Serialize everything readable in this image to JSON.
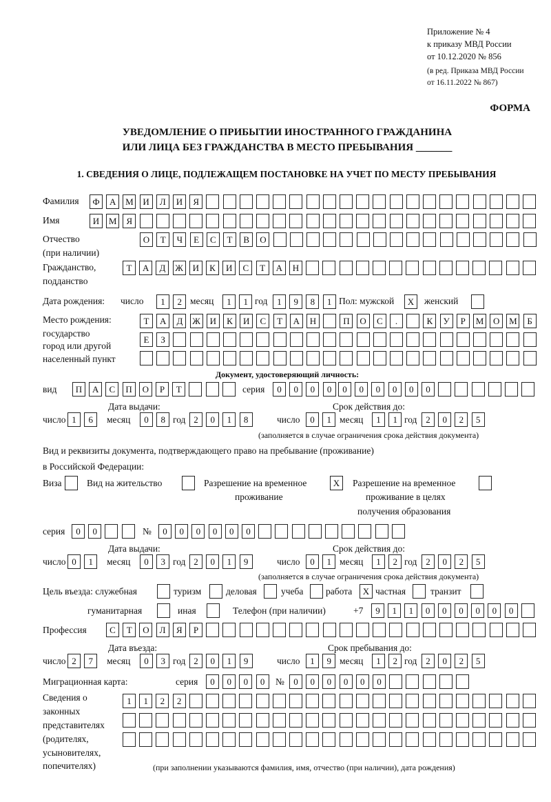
{
  "header": {
    "line1": "Приложение № 4",
    "line2": "к приказу МВД России",
    "line3": "от 10.12.2020 № 856",
    "line4": "(в ред. Приказа МВД России",
    "line5": "от 16.11.2022 № 867)",
    "forma": "ФОРМА",
    "title1": "УВЕДОМЛЕНИЕ О ПРИБЫТИИ ИНОСТРАННОГО ГРАЖДАНИНА",
    "title2": "ИЛИ ЛИЦА БЕЗ ГРАЖДАНСТВА В МЕСТО ПРЕБЫВАНИЯ _______",
    "section1": "1. СВЕДЕНИЯ О ЛИЦЕ, ПОДЛЕЖАЩЕМ ПОСТАНОВКЕ НА УЧЕТ ПО МЕСТУ ПРЕБЫВАНИЯ"
  },
  "labels": {
    "surname": "Фамилия",
    "name": "Имя",
    "patronymic": "Отчество",
    "patronymic_note": "(при наличии)",
    "citizenship1": "Гражданство,",
    "citizenship2": "подданство",
    "dob": "Дата рождения:",
    "day": "число",
    "month": "месяц",
    "year": "год",
    "sex_male": "Пол: мужской",
    "sex_female": "женский",
    "birthplace1": "Место рождения:",
    "birthplace2": "государство",
    "birthplace3": "город или другой",
    "birthplace4": "населенный пункт",
    "id_doc": "Документ, удостоверяющий личность:",
    "kind": "вид",
    "series": "серия",
    "number": "№",
    "issue_date": "Дата выдачи:",
    "valid_until": "Срок действия до:",
    "validity_note": "(заполняется в случае ограничения срока действия документа)",
    "stay_doc1": "Вид и реквизиты документа, подтверждающего право на пребывание (проживание)",
    "stay_doc2": "в Российской Федерации:",
    "visa": "Виза",
    "residence_permit": "Вид на жительство",
    "trp1": "Разрешение на временное",
    "trp2": "проживание",
    "trp_edu1": "Разрешение на временное",
    "trp_edu2": "проживание в целях",
    "trp_edu3": "получения образования",
    "purpose": "Цель въезда: служебная",
    "tourism": "туризм",
    "business": "деловая",
    "study": "учеба",
    "work": "работа",
    "private": "частная",
    "transit": "транзит",
    "humanitarian": "гуманитарная",
    "other": "иная",
    "phone": "Телефон (при наличии)",
    "phone_prefix": "+7",
    "profession": "Профессия",
    "entry_date": "Дата въезда:",
    "stay_until": "Срок пребывания до:",
    "migration_card": "Миграционная карта:",
    "reps1": "Сведения о",
    "reps2": "законных",
    "reps3": "представителях",
    "reps4": "(родителях,",
    "reps5": "усыновителях,",
    "reps6": "попечителях)",
    "reps_note": "(при заполнении указываются фамилия, имя, отчество (при наличии), дата рождения)"
  },
  "boxes": {
    "surname": [
      "Ф",
      "А",
      "М",
      "И",
      "Л",
      "И",
      "Я"
    ],
    "name": [
      "И",
      "М",
      "Я"
    ],
    "patronymic": [
      "О",
      "Т",
      "Ч",
      "Е",
      "С",
      "Т",
      "В",
      "О"
    ],
    "citizenship": [
      "Т",
      "А",
      "Д",
      "Ж",
      "И",
      "К",
      "И",
      "С",
      "Т",
      "А",
      "Н"
    ],
    "dob_day": [
      "1",
      "2"
    ],
    "dob_month": [
      "1",
      "1"
    ],
    "dob_year": [
      "1",
      "9",
      "8",
      "1"
    ],
    "sex_male": [
      "X"
    ],
    "sex_female": [
      ""
    ],
    "birthplace_1": [
      "Т",
      "А",
      "Д",
      "Ж",
      "И",
      "К",
      "И",
      "С",
      "Т",
      "А",
      "Н",
      "",
      "П",
      "О",
      "С",
      ".",
      "",
      "К",
      "У",
      "Р",
      "М",
      "О",
      "М",
      "Б"
    ],
    "birthplace_2": [
      "Е",
      "З"
    ],
    "birthplace_3": [],
    "id_kind": [
      "П",
      "А",
      "С",
      "П",
      "О",
      "Р",
      "Т"
    ],
    "id_series": [
      "0",
      "0",
      "0",
      "0"
    ],
    "id_number": [
      "0",
      "0",
      "0",
      "0",
      "0",
      "0"
    ],
    "id_issue_day": [
      "1",
      "6"
    ],
    "id_issue_month": [
      "0",
      "8"
    ],
    "id_issue_year": [
      "2",
      "0",
      "1",
      "8"
    ],
    "id_valid_day": [
      "0",
      "1"
    ],
    "id_valid_month": [
      "1",
      "1"
    ],
    "id_valid_year": [
      "2",
      "0",
      "2",
      "5"
    ],
    "doc_visa": [
      ""
    ],
    "doc_residence": [
      ""
    ],
    "doc_trp": [
      "X"
    ],
    "doc_trp_edu": [
      ""
    ],
    "doc_series": [
      "0",
      "0"
    ],
    "doc_number": [
      "0",
      "0",
      "0",
      "0",
      "0",
      "0"
    ],
    "doc_issue_day": [
      "0",
      "1"
    ],
    "doc_issue_month": [
      "0",
      "3"
    ],
    "doc_issue_year": [
      "2",
      "0",
      "1",
      "9"
    ],
    "doc_valid_day": [
      "0",
      "1"
    ],
    "doc_valid_month": [
      "1",
      "2"
    ],
    "doc_valid_year": [
      "2",
      "0",
      "2",
      "5"
    ],
    "purpose_official": [
      ""
    ],
    "purpose_tourism": [
      ""
    ],
    "purpose_business": [
      ""
    ],
    "purpose_study": [
      ""
    ],
    "purpose_work": [
      "X"
    ],
    "purpose_private": [
      ""
    ],
    "purpose_transit": [
      ""
    ],
    "purpose_humanitarian": [
      ""
    ],
    "purpose_other": [
      ""
    ],
    "phone": [
      "9",
      "1",
      "1",
      "0",
      "0",
      "0",
      "0",
      "0",
      "0"
    ],
    "profession": [
      "С",
      "Т",
      "О",
      "Л",
      "Я",
      "Р"
    ],
    "entry_day": [
      "2",
      "7"
    ],
    "entry_month": [
      "0",
      "3"
    ],
    "entry_year": [
      "2",
      "0",
      "1",
      "9"
    ],
    "stay_day": [
      "1",
      "9"
    ],
    "stay_month": [
      "1",
      "2"
    ],
    "stay_year": [
      "2",
      "0",
      "2",
      "5"
    ],
    "mc_series": [
      "0",
      "0",
      "0",
      "0"
    ],
    "mc_number": [
      "0",
      "0",
      "0",
      "0",
      "0",
      "0"
    ],
    "reps_1": [
      "1",
      "1",
      "2",
      "2"
    ],
    "reps_2": [],
    "reps_3": []
  }
}
